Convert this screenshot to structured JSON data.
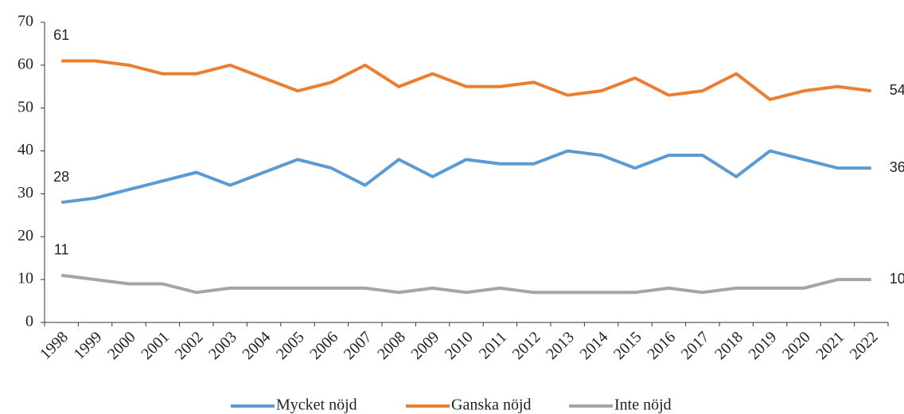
{
  "chart_data": {
    "type": "line",
    "categories": [
      "1998",
      "1999",
      "2000",
      "2001",
      "2002",
      "2003",
      "2004",
      "2005",
      "2006",
      "2007",
      "2008",
      "2009",
      "2010",
      "2011",
      "2012",
      "2013",
      "2014",
      "2015",
      "2016",
      "2017",
      "2018",
      "2019",
      "2020",
      "2021",
      "2022"
    ],
    "series": [
      {
        "name": "Mycket nöjd",
        "color": "#5b9bd5",
        "values": [
          28,
          29,
          31,
          33,
          35,
          32,
          35,
          38,
          36,
          32,
          38,
          34,
          38,
          37,
          37,
          40,
          39,
          36,
          39,
          39,
          34,
          40,
          38,
          36,
          36
        ]
      },
      {
        "name": "Ganska nöjd",
        "color": "#ed7d31",
        "values": [
          61,
          61,
          60,
          58,
          58,
          60,
          57,
          54,
          56,
          60,
          55,
          58,
          55,
          55,
          56,
          53,
          54,
          57,
          53,
          54,
          58,
          52,
          54,
          55,
          54
        ]
      },
      {
        "name": "Inte nöjd",
        "color": "#a5a5a5",
        "values": [
          11,
          10,
          9,
          9,
          7,
          8,
          8,
          8,
          8,
          8,
          7,
          8,
          7,
          8,
          7,
          7,
          7,
          7,
          8,
          7,
          8,
          8,
          8,
          10,
          10
        ]
      }
    ],
    "ylim": [
      0,
      70
    ],
    "yticks": [
      0,
      10,
      20,
      30,
      40,
      50,
      60,
      70
    ],
    "data_labels": "ends",
    "legend": "bottom"
  }
}
